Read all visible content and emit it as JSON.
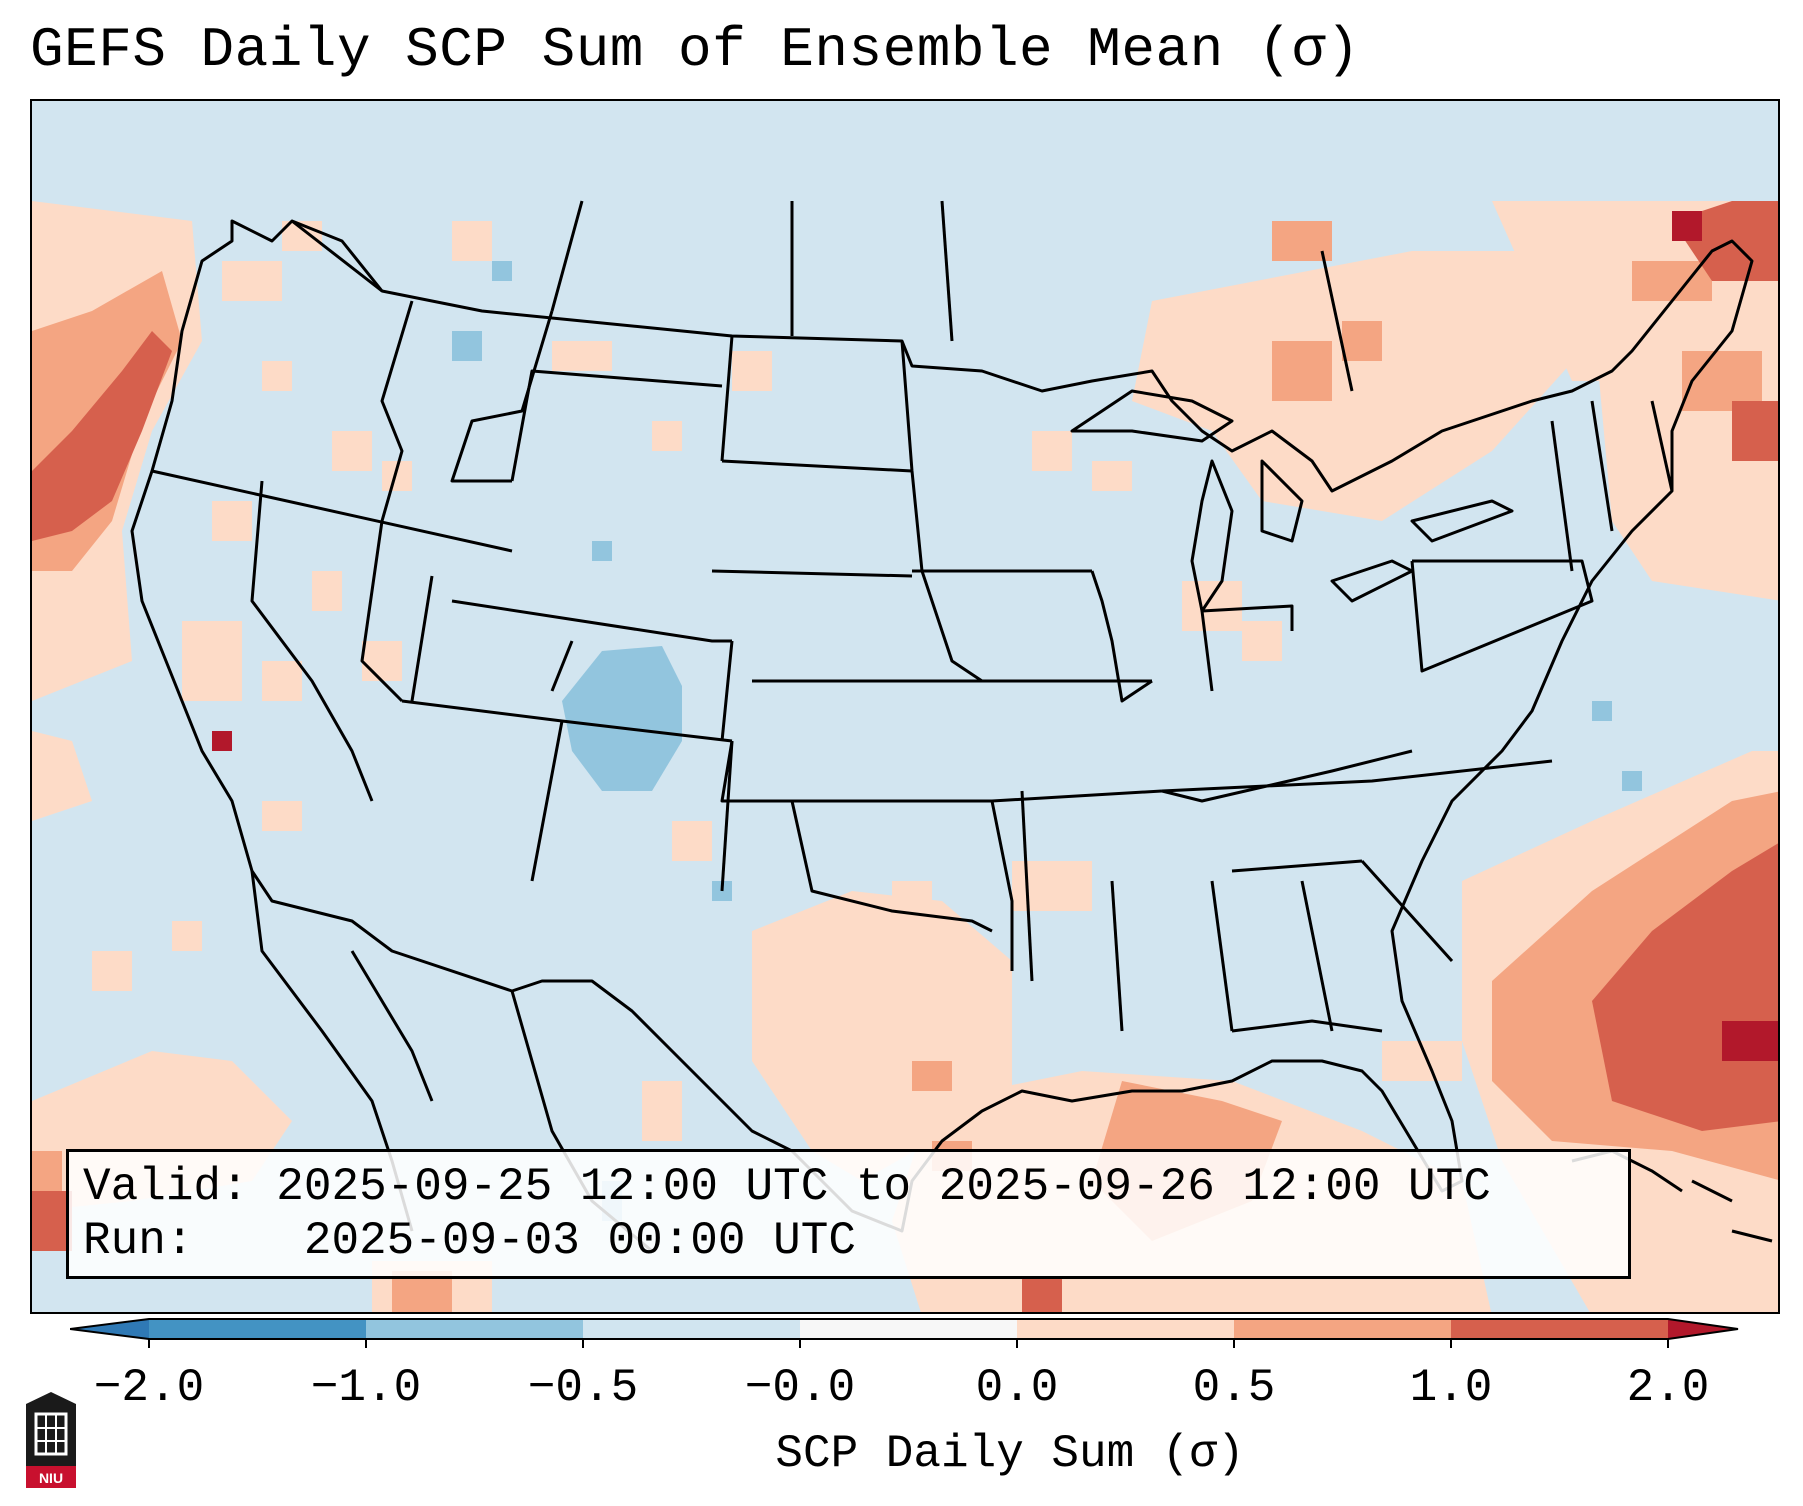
{
  "title": "GEFS Daily SCP Sum of Ensemble Mean (σ)",
  "info": {
    "valid_label": "Valid:",
    "valid_value": "2025-09-25 12:00 UTC to 2025-09-26 12:00 UTC",
    "run_label": "Run:",
    "run_value": "2025-09-03 00:00 UTC"
  },
  "colorbar": {
    "label": "SCP Daily Sum (σ)",
    "ticks": [
      "−2.0",
      "−1.0",
      "−0.5",
      "−0.0",
      "0.0",
      "0.5",
      "1.0",
      "2.0"
    ],
    "colors": {
      "under": "#2f79b5",
      "b_-2_-1": "#4393c3",
      "b_-1_-05": "#92c5de",
      "b_-05_0": "#d1e5f0",
      "b_0": "#f7f7f7",
      "b_0_05": "#fddbc7",
      "b_05_1": "#f4a582",
      "b_1_2": "#d6604d",
      "over": "#b2182b"
    }
  },
  "logo": {
    "text": "NIU"
  },
  "colors": {
    "background_field": "#d2e5f0",
    "coastline": "#000000",
    "frame": "#000000"
  }
}
